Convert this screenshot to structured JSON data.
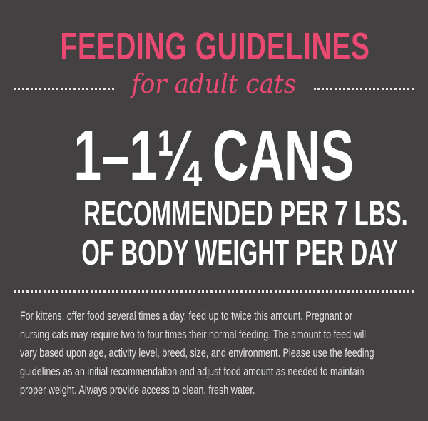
{
  "colors": {
    "background": "#434142",
    "accent": "#ea4a72",
    "text": "#ffffff"
  },
  "title": "FEEDING GUIDELINES",
  "subtitle": "for adult cats",
  "amount": "1–1¼ CANS",
  "recommendation_line1": "RECOMMENDED PER 7 LBS.",
  "recommendation_line2": "OF BODY WEIGHT PER DAY",
  "note_lines": [
    " For kittens, offer food several times a day, feed up to twice this amount.  Pregnant or",
    "nursing cats may require two to four times their normal feeding.  The amount to feed will",
    "vary based upon age, activity level, breed, size, and environment.  Please use the feeding",
    "guidelines as an initial recommendation and adjust food amount as needed to maintain",
    "proper weight.  Always provide access to clean, fresh water."
  ]
}
